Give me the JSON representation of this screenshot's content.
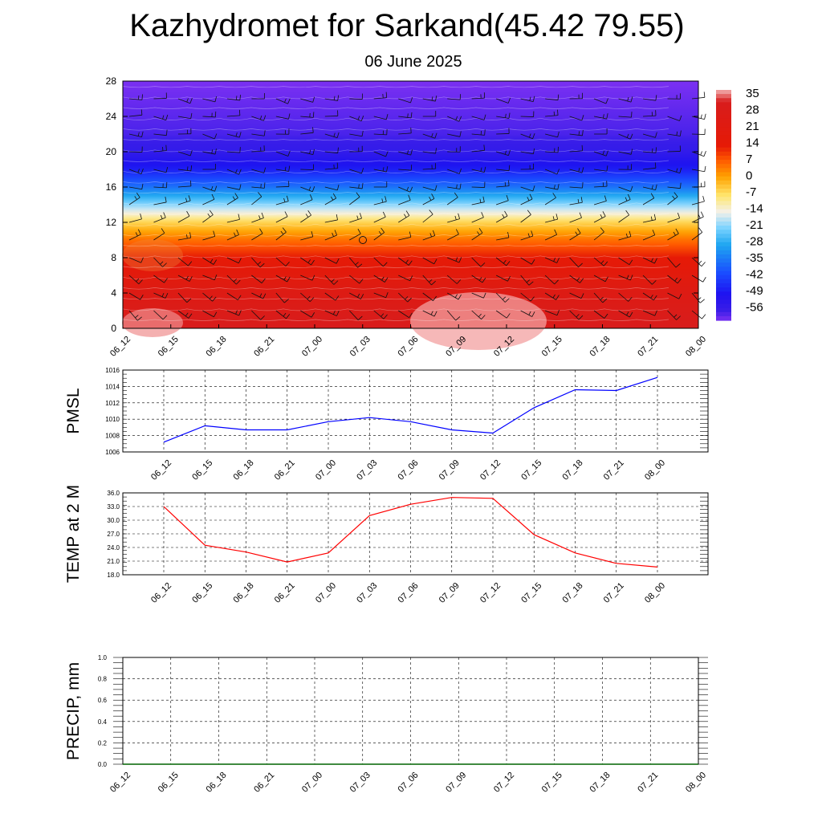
{
  "header": {
    "title": "Kazhydromet for Sarkand(45.42 79.55)",
    "subtitle": "06 June 2025"
  },
  "chart_data": [
    {
      "type": "heatmap",
      "title": "",
      "xlabel": "",
      "ylabel": "",
      "categories": [
        "06_12",
        "06_15",
        "06_18",
        "06_21",
        "07_00",
        "07_03",
        "07_06",
        "07_09",
        "07_12",
        "07_15",
        "07_18",
        "07_21",
        "08_00"
      ],
      "yticks": [
        "0",
        "4",
        "8",
        "12",
        "16",
        "20",
        "24",
        "28"
      ],
      "ylim": [
        0,
        28
      ],
      "colorbar": {
        "labels": [
          "35",
          "28",
          "21",
          "14",
          "7",
          "0",
          "-7",
          "-14",
          "-21",
          "-28",
          "-35",
          "-42",
          "-49",
          "-56"
        ],
        "range": [
          -60,
          38
        ],
        "stops": [
          {
            "v": 38,
            "c": "#f3b3b3"
          },
          {
            "v": 33,
            "c": "#d81c1c"
          },
          {
            "v": 14,
            "c": "#e61a06"
          },
          {
            "v": 8,
            "c": "#ff5a00"
          },
          {
            "v": 1,
            "c": "#ffa200"
          },
          {
            "v": -7,
            "c": "#ffe66e"
          },
          {
            "v": -14,
            "c": "#f4f1ea"
          },
          {
            "v": -21,
            "c": "#78d2ff"
          },
          {
            "v": -28,
            "c": "#1ea6f0"
          },
          {
            "v": -40,
            "c": "#1a4cff"
          },
          {
            "v": -49,
            "c": "#1e12f0"
          },
          {
            "v": -56,
            "c": "#3a1ee8"
          },
          {
            "v": -60,
            "c": "#7b30f2"
          }
        ]
      },
      "profile": [
        {
          "y": 0,
          "value": 33
        },
        {
          "y": 4,
          "value": 26
        },
        {
          "y": 8,
          "value": 14
        },
        {
          "y": 10,
          "value": 6
        },
        {
          "y": 12,
          "value": -5
        },
        {
          "y": 13,
          "value": -13
        },
        {
          "y": 14,
          "value": -20
        },
        {
          "y": 16,
          "value": -35
        },
        {
          "y": 18,
          "value": -47
        },
        {
          "y": 20,
          "value": -54
        },
        {
          "y": 22,
          "value": -57
        },
        {
          "y": 24,
          "value": -58
        },
        {
          "y": 28,
          "value": -60
        }
      ]
    },
    {
      "type": "line",
      "ylabel": "PMSL",
      "ylim": [
        1006,
        1016
      ],
      "yticks": [
        "1016",
        "1014",
        "1012",
        "1010",
        "1008",
        "1006"
      ],
      "grid": true,
      "categories": [
        "06_12",
        "06_15",
        "06_18",
        "06_21",
        "07_00",
        "07_03",
        "07_06",
        "07_09",
        "07_12",
        "07_15",
        "07_18",
        "07_21",
        "08_00"
      ],
      "series": [
        {
          "color": "#0000ff",
          "values": [
            1007.2,
            1009.2,
            1008.7,
            1008.7,
            1009.7,
            1010.2,
            1009.7,
            1008.7,
            1008.3,
            1011.4,
            1013.6,
            1013.5,
            1015.1
          ]
        }
      ]
    },
    {
      "type": "line",
      "ylabel": "TEMP at 2 M",
      "ylim": [
        18,
        36
      ],
      "yticks": [
        "36.0",
        "33.0",
        "30.0",
        "27.0",
        "24.0",
        "21.0",
        "18.0"
      ],
      "grid": true,
      "categories": [
        "06_12",
        "06_15",
        "06_18",
        "06_21",
        "07_00",
        "07_03",
        "07_06",
        "07_09",
        "07_12",
        "07_15",
        "07_18",
        "07_21",
        "08_00"
      ],
      "series": [
        {
          "color": "#ff0000",
          "values": [
            33.0,
            24.5,
            23.0,
            20.8,
            22.8,
            31.0,
            33.5,
            35.0,
            34.8,
            26.8,
            22.8,
            20.5,
            19.7
          ]
        }
      ]
    },
    {
      "type": "line",
      "ylabel": "PRECIP, mm",
      "ylim": [
        0,
        1
      ],
      "yticks": [
        "1.0",
        "0.8",
        "0.6",
        "0.4",
        "0.2",
        "0.0"
      ],
      "grid": true,
      "categories": [
        "06_12",
        "06_15",
        "06_18",
        "06_21",
        "07_00",
        "07_03",
        "07_06",
        "07_09",
        "07_12",
        "07_15",
        "07_18",
        "07_21",
        "08_00"
      ],
      "series": [
        {
          "color": "#006400",
          "values": [
            0,
            0,
            0,
            0,
            0,
            0,
            0,
            0,
            0,
            0,
            0,
            0,
            0
          ]
        }
      ]
    }
  ]
}
